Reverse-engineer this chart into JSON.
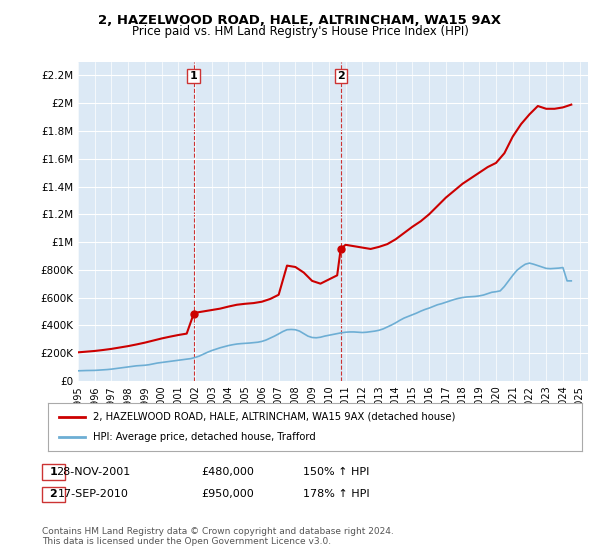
{
  "title": "2, HAZELWOOD ROAD, HALE, ALTRINCHAM, WA15 9AX",
  "subtitle": "Price paid vs. HM Land Registry's House Price Index (HPI)",
  "ylabel_ticks": [
    "£0",
    "£200K",
    "£400K",
    "£600K",
    "£800K",
    "£1M",
    "£1.2M",
    "£1.4M",
    "£1.6M",
    "£1.8M",
    "£2M",
    "£2.2M"
  ],
  "ylim": [
    0,
    2300000
  ],
  "yticks": [
    0,
    200000,
    400000,
    600000,
    800000,
    1000000,
    1200000,
    1400000,
    1600000,
    1800000,
    2000000,
    2200000
  ],
  "xmin": 1995.0,
  "xmax": 2025.5,
  "xticks": [
    1995,
    1996,
    1997,
    1998,
    1999,
    2000,
    2001,
    2002,
    2003,
    2004,
    2005,
    2006,
    2007,
    2008,
    2009,
    2010,
    2011,
    2012,
    2013,
    2014,
    2015,
    2016,
    2017,
    2018,
    2019,
    2020,
    2021,
    2022,
    2023,
    2024,
    2025
  ],
  "sale1_x": 2001.91,
  "sale1_y": 480000,
  "sale1_label": "1",
  "sale2_x": 2010.71,
  "sale2_y": 950000,
  "sale2_label": "2",
  "hpi_line_color": "#6daed4",
  "price_line_color": "#cc0000",
  "vline_color": "#cc3333",
  "dot_color": "#cc0000",
  "background_color": "#dce9f5",
  "plot_bg_color": "#dce9f5",
  "outer_bg_color": "#ffffff",
  "legend_house_label": "2, HAZELWOOD ROAD, HALE, ALTRINCHAM, WA15 9AX (detached house)",
  "legend_hpi_label": "HPI: Average price, detached house, Trafford",
  "table_row1": [
    "1",
    "28-NOV-2001",
    "£480,000",
    "150% ↑ HPI"
  ],
  "table_row2": [
    "2",
    "17-SEP-2010",
    "£950,000",
    "178% ↑ HPI"
  ],
  "footer": "Contains HM Land Registry data © Crown copyright and database right 2024.\nThis data is licensed under the Open Government Licence v3.0.",
  "hpi_data_x": [
    1995.0,
    1995.25,
    1995.5,
    1995.75,
    1996.0,
    1996.25,
    1996.5,
    1996.75,
    1997.0,
    1997.25,
    1997.5,
    1997.75,
    1998.0,
    1998.25,
    1998.5,
    1998.75,
    1999.0,
    1999.25,
    1999.5,
    1999.75,
    2000.0,
    2000.25,
    2000.5,
    2000.75,
    2001.0,
    2001.25,
    2001.5,
    2001.75,
    2002.0,
    2002.25,
    2002.5,
    2002.75,
    2003.0,
    2003.25,
    2003.5,
    2003.75,
    2004.0,
    2004.25,
    2004.5,
    2004.75,
    2005.0,
    2005.25,
    2005.5,
    2005.75,
    2006.0,
    2006.25,
    2006.5,
    2006.75,
    2007.0,
    2007.25,
    2007.5,
    2007.75,
    2008.0,
    2008.25,
    2008.5,
    2008.75,
    2009.0,
    2009.25,
    2009.5,
    2009.75,
    2010.0,
    2010.25,
    2010.5,
    2010.75,
    2011.0,
    2011.25,
    2011.5,
    2011.75,
    2012.0,
    2012.25,
    2012.5,
    2012.75,
    2013.0,
    2013.25,
    2013.5,
    2013.75,
    2014.0,
    2014.25,
    2014.5,
    2014.75,
    2015.0,
    2015.25,
    2015.5,
    2015.75,
    2016.0,
    2016.25,
    2016.5,
    2016.75,
    2017.0,
    2017.25,
    2017.5,
    2017.75,
    2018.0,
    2018.25,
    2018.5,
    2018.75,
    2019.0,
    2019.25,
    2019.5,
    2019.75,
    2020.0,
    2020.25,
    2020.5,
    2020.75,
    2021.0,
    2021.25,
    2021.5,
    2021.75,
    2022.0,
    2022.25,
    2022.5,
    2022.75,
    2023.0,
    2023.25,
    2023.5,
    2023.75,
    2024.0,
    2024.25,
    2024.5
  ],
  "hpi_data_y": [
    72000,
    73000,
    74000,
    74500,
    75000,
    77000,
    79000,
    81000,
    84000,
    88000,
    92000,
    96000,
    100000,
    104000,
    108000,
    110000,
    112000,
    116000,
    122000,
    128000,
    132000,
    136000,
    140000,
    144000,
    148000,
    152000,
    156000,
    160000,
    168000,
    178000,
    192000,
    206000,
    218000,
    228000,
    238000,
    246000,
    254000,
    260000,
    265000,
    268000,
    270000,
    272000,
    275000,
    278000,
    284000,
    294000,
    308000,
    322000,
    338000,
    355000,
    368000,
    370000,
    368000,
    358000,
    340000,
    322000,
    312000,
    310000,
    314000,
    322000,
    328000,
    334000,
    340000,
    346000,
    350000,
    352000,
    352000,
    350000,
    348000,
    350000,
    354000,
    358000,
    364000,
    374000,
    388000,
    402000,
    418000,
    436000,
    452000,
    464000,
    476000,
    488000,
    502000,
    514000,
    524000,
    536000,
    548000,
    556000,
    566000,
    576000,
    586000,
    594000,
    600000,
    604000,
    606000,
    608000,
    612000,
    618000,
    628000,
    638000,
    642000,
    648000,
    680000,
    720000,
    760000,
    796000,
    820000,
    840000,
    848000,
    840000,
    830000,
    820000,
    810000,
    808000,
    810000,
    812000,
    816000,
    720000,
    720000
  ],
  "price_data_x": [
    1995.0,
    1995.5,
    1996.0,
    1996.5,
    1997.0,
    1997.5,
    1998.0,
    1998.5,
    1999.0,
    1999.5,
    2000.0,
    2000.5,
    2001.0,
    2001.5,
    2001.91,
    2002.0,
    2002.5,
    2003.0,
    2003.5,
    2004.0,
    2004.5,
    2005.0,
    2005.5,
    2006.0,
    2006.5,
    2007.0,
    2007.5,
    2008.0,
    2008.5,
    2009.0,
    2009.5,
    2010.0,
    2010.5,
    2010.71,
    2011.0,
    2011.5,
    2012.0,
    2012.5,
    2013.0,
    2013.5,
    2014.0,
    2014.5,
    2015.0,
    2015.5,
    2016.0,
    2016.5,
    2017.0,
    2017.5,
    2018.0,
    2018.5,
    2019.0,
    2019.5,
    2020.0,
    2020.5,
    2021.0,
    2021.5,
    2022.0,
    2022.5,
    2023.0,
    2023.5,
    2024.0,
    2024.5
  ],
  "price_data_y": [
    205000,
    210000,
    215000,
    222000,
    230000,
    240000,
    250000,
    262000,
    275000,
    290000,
    305000,
    318000,
    330000,
    340000,
    480000,
    490000,
    500000,
    510000,
    520000,
    535000,
    548000,
    555000,
    560000,
    570000,
    590000,
    620000,
    830000,
    820000,
    780000,
    720000,
    700000,
    730000,
    760000,
    950000,
    980000,
    970000,
    960000,
    950000,
    965000,
    985000,
    1020000,
    1065000,
    1110000,
    1150000,
    1200000,
    1260000,
    1320000,
    1370000,
    1420000,
    1460000,
    1500000,
    1540000,
    1570000,
    1640000,
    1760000,
    1850000,
    1920000,
    1980000,
    1960000,
    1960000,
    1970000,
    1990000
  ]
}
